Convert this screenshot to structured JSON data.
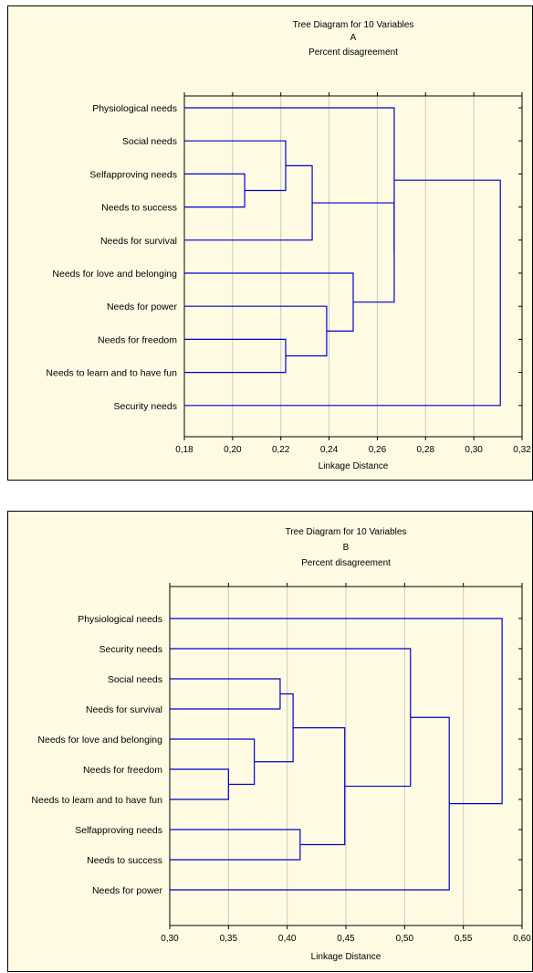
{
  "chart_data": [
    {
      "type": "dendrogram",
      "title": "Tree Diagram for 10 Variables",
      "panel_label": "A",
      "subtitle": "Percent disagreement",
      "xlabel": "Linkage Distance",
      "xlim": [
        0.18,
        0.32
      ],
      "xticks": [
        0.18,
        0.2,
        0.22,
        0.24,
        0.26,
        0.28,
        0.3,
        0.32
      ],
      "xtick_labels": [
        "0,18",
        "0,20",
        "0,22",
        "0,24",
        "0,26",
        "0,28",
        "0,30",
        "0,32"
      ],
      "grid": true,
      "leaves": [
        "Physiological needs",
        "Social needs",
        "Selfapproving needs",
        "Needs to success",
        "Needs for survival",
        "Needs for love and belonging",
        "Needs for power",
        "Needs for freedom",
        "Needs to learn and to have fun",
        "Security needs"
      ],
      "merges": [
        {
          "left": "Selfapproving needs",
          "right": "Needs to success",
          "distance": 0.205
        },
        {
          "left": "Needs for freedom",
          "right": "Needs to learn and to have fun",
          "distance": 0.222
        },
        {
          "left": "Social needs",
          "right": 0,
          "distance": 0.222
        },
        {
          "left": 2,
          "right": "Needs for survival",
          "distance": 0.233
        },
        {
          "left": "Needs for power",
          "right": 1,
          "distance": 0.239
        },
        {
          "left": "Needs for love and belonging",
          "right": 4,
          "distance": 0.25
        },
        {
          "left": 3,
          "right": 5,
          "distance": 0.267
        },
        {
          "left": "Physiological needs",
          "right": 6,
          "distance": 0.267
        },
        {
          "left": 7,
          "right": "Security needs",
          "distance": 0.311
        }
      ],
      "line_color": "#0000cc"
    },
    {
      "type": "dendrogram",
      "title": "Tree Diagram for 10 Variables",
      "panel_label": "B",
      "subtitle": "Percent disagreement",
      "xlabel": "Linkage Distance",
      "xlim": [
        0.3,
        0.6
      ],
      "xticks": [
        0.3,
        0.35,
        0.4,
        0.45,
        0.5,
        0.55,
        0.6
      ],
      "xtick_labels": [
        "0,30",
        "0,35",
        "0,40",
        "0,45",
        "0,50",
        "0,55",
        "0,60"
      ],
      "grid": true,
      "leaves": [
        "Physiological needs",
        "Security needs",
        "Social needs",
        "Needs for survival",
        "Needs for love and belonging",
        "Needs for freedom",
        "Needs to learn and to have fun",
        "Selfapproving needs",
        "Needs to success",
        "Needs for power"
      ],
      "merges": [
        {
          "left": "Needs for freedom",
          "right": "Needs to learn and to have fun",
          "distance": 0.35
        },
        {
          "left": "Needs for love and belonging",
          "right": 0,
          "distance": 0.372
        },
        {
          "left": "Social needs",
          "right": "Needs for survival",
          "distance": 0.394
        },
        {
          "left": 2,
          "right": 1,
          "distance": 0.405
        },
        {
          "left": "Selfapproving needs",
          "right": "Needs to success",
          "distance": 0.411
        },
        {
          "left": 3,
          "right": 4,
          "distance": 0.449
        },
        {
          "left": "Security needs",
          "right": 5,
          "distance": 0.505
        },
        {
          "left": 6,
          "right": "Needs for power",
          "distance": 0.538
        },
        {
          "left": "Physiological needs",
          "right": 7,
          "distance": 0.583
        }
      ],
      "line_color": "#0000cc"
    }
  ]
}
